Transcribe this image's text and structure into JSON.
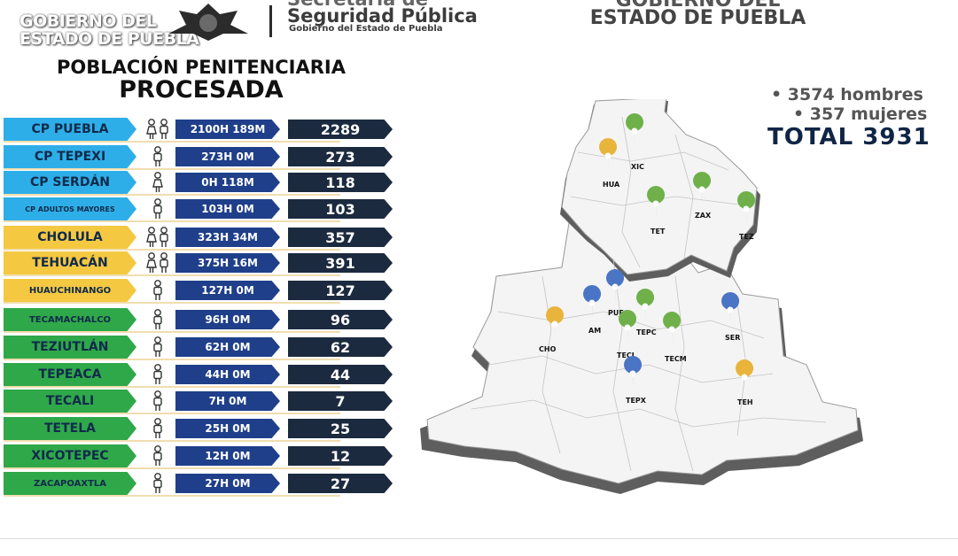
{
  "header": {
    "gob_logo_line1": "GOBIERNO DEL",
    "gob_logo_line2": "ESTADO DE PUEBLA",
    "ssp_line1": "Secretaría de",
    "ssp_line2": "Seguridad Pública",
    "ssp_sub": "Gobierno del Estado de Puebla",
    "estado_line1": "GOBIERNO DEL",
    "estado_line2": "ESTADO DE PUEBLA"
  },
  "title": {
    "line1": "POBLACIÓN PENITENCIARIA",
    "line2": "PROCESADA"
  },
  "rows": [
    {
      "name": "CP PUEBLA",
      "hm": "2100H 189M",
      "total": "2289"
    },
    {
      "name": "CP TEPEXI",
      "hm": "273H 0M",
      "total": "273"
    },
    {
      "name": "CP SERDÁN",
      "hm": "0H 118M",
      "total": "118"
    },
    {
      "name": "CP ADULTOS MAYORES",
      "hm": "103H 0M",
      "total": "103"
    },
    {
      "name": "CHOLULA",
      "hm": "323H 34M",
      "total": "357"
    },
    {
      "name": "TEHUACÁN",
      "hm": "375H 16M",
      "total": "391"
    },
    {
      "name": "HUAUCHINANGO",
      "hm": "127H 0M",
      "total": "127"
    },
    {
      "name": "TECAMACHALCO",
      "hm": "96H 0M",
      "total": "96"
    },
    {
      "name": "TEZIUTLÁN",
      "hm": "62H 0M",
      "total": "62"
    },
    {
      "name": "TEPEACA",
      "hm": "44H 0M",
      "total": "44"
    },
    {
      "name": "TECALI",
      "hm": "7H 0M",
      "total": "7"
    },
    {
      "name": "TETELA",
      "hm": "25H 0M",
      "total": "25"
    },
    {
      "name": "XICOTEPEC",
      "hm": "12H 0M",
      "total": "12"
    },
    {
      "name": "ZACAPOAXTLA",
      "hm": "27H 0M",
      "total": "27"
    }
  ],
  "summary": {
    "hombres": "3574 hombres",
    "mujeres": "357 mujeres",
    "total": "TOTAL 3931"
  },
  "map_labels": {
    "xic": "XIC",
    "hua": "HUA",
    "zax": "ZAX",
    "tet": "TET",
    "tez": "TEZ",
    "pue": "PUE",
    "am": "AM",
    "tepc": "TEPC",
    "ser": "SER",
    "cho": "CHO",
    "tecl": "TECL",
    "tecm": "TECM",
    "tepx": "TEPX",
    "teh": "TEH"
  },
  "colors": {
    "blue_row": "#2eaee8",
    "yellow_row": "#f5c842",
    "green_row": "#2fa84a",
    "hm_box": "#1f3f8a",
    "total_box": "#1c2a3f",
    "pin_green": "#6fb04a",
    "pin_yellow": "#e9b43c",
    "pin_blue": "#4a74c4"
  },
  "icons": [
    "female-male-pair-icon",
    "male-person-icon",
    "female-person-icon",
    "map-pin-icon"
  ]
}
